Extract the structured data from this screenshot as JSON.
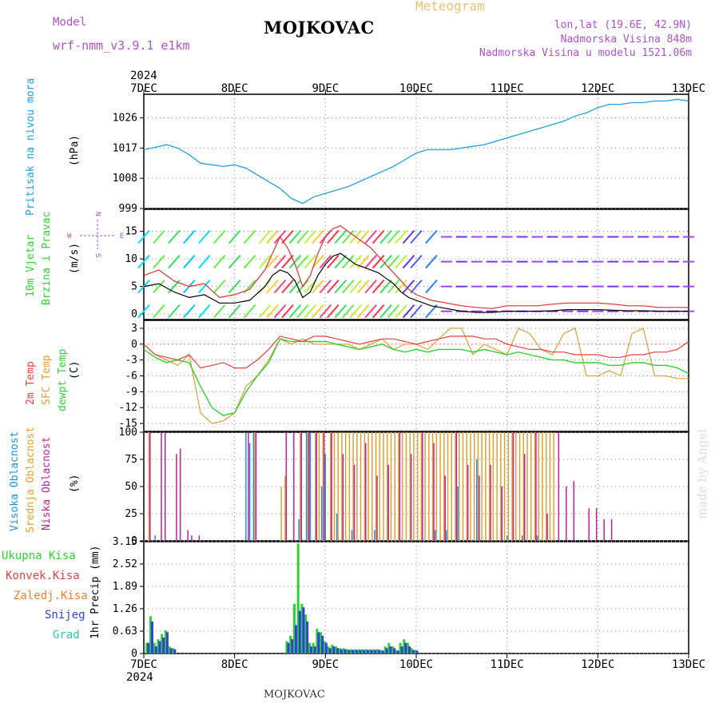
{
  "header": {
    "model_label": "Model",
    "model_name": "wrf-nmm_v3.9.1  e1km",
    "title": "MOJKOVAC",
    "meteogram": "Meteogram",
    "lonlat": "lon,lat (19.6E, 42.9N)",
    "altitude": "Nadmorska Visina 848m",
    "model_altitude": "Nadmorska Visina u modelu 1521.06m"
  },
  "footer": {
    "station": "MOJKOVAC",
    "signature": "made by Angel"
  },
  "colors": {
    "pressure": "#1fa0e0",
    "wind_speed": "#000000",
    "wind_gust": "#e03030",
    "temp_2m": "#e84040",
    "temp_sfc": "#e0a030",
    "dewpoint": "#30d030",
    "cloud_high": "#2090e0",
    "cloud_mid": "#e0a030",
    "cloud_low": "#c020a0",
    "precip_total": "#30d030",
    "precip_snow": "#3040e0",
    "grid": "#888888",
    "purple_text": "#b04fd0"
  },
  "chart_data": [
    {
      "type": "line",
      "panel": "pressure",
      "ylabel_parts": [
        "Pritisak na nivou mora",
        "(hPa)"
      ],
      "ylim": [
        999,
        1033
      ],
      "yticks": [
        999,
        1008,
        1017,
        1026
      ],
      "x_top_labels": [
        "7DEC",
        "8DEC",
        "9DEC",
        "10DEC",
        "11DEC",
        "12DEC",
        "13DEC"
      ],
      "x_top_year": "2024",
      "xlim_hours": [
        0,
        144
      ],
      "grid": true,
      "series": [
        {
          "x": [
            0,
            3,
            6,
            9,
            12,
            15,
            18,
            21,
            24,
            27,
            30,
            33,
            36,
            39,
            42,
            45,
            48,
            51,
            54,
            57,
            60,
            63,
            66,
            69,
            72,
            75,
            78,
            81,
            84,
            87,
            90,
            93,
            96,
            99,
            102,
            105,
            108,
            111,
            114,
            117,
            120,
            123,
            126,
            129,
            132,
            135,
            138,
            141,
            144
          ],
          "values": [
            1016.5,
            1017.2,
            1018.0,
            1017.0,
            1015.0,
            1012.5,
            1012.0,
            1011.5,
            1012.0,
            1011.0,
            1009.0,
            1007.0,
            1005.0,
            1002.0,
            1000.5,
            1002.5,
            1003.5,
            1004.5,
            1005.5,
            1007.0,
            1008.5,
            1010.0,
            1011.5,
            1013.5,
            1015.5,
            1016.5,
            1016.5,
            1016.5,
            1017.0,
            1017.5,
            1018.0,
            1019.0,
            1020.0,
            1021.0,
            1022.0,
            1023.0,
            1024.0,
            1025.0,
            1026.5,
            1027.5,
            1029.0,
            1030.0,
            1030.0,
            1030.5,
            1030.5,
            1031.0,
            1031.0,
            1031.5,
            1031.0
          ]
        }
      ]
    },
    {
      "type": "line",
      "panel": "wind",
      "ylabel_parts": [
        "10m Vjetar",
        "Brzina i Pravac",
        "(m/s)"
      ],
      "compass": [
        "N",
        "E",
        "S",
        "W"
      ],
      "ylim": [
        -1,
        19
      ],
      "yticks": [
        0,
        5,
        10,
        15
      ],
      "grid": true,
      "series": [
        {
          "name": "speed",
          "x": [
            0,
            4,
            8,
            12,
            16,
            20,
            24,
            28,
            32,
            34,
            36,
            38,
            40,
            42,
            44,
            46,
            48,
            50,
            52,
            54,
            56,
            58,
            60,
            62,
            64,
            66,
            68,
            70,
            72,
            76,
            80,
            84,
            88,
            92,
            96,
            100,
            104,
            108,
            112,
            116,
            120,
            124,
            128,
            132,
            136,
            140,
            144
          ],
          "values": [
            5.0,
            5.5,
            4.0,
            3.0,
            3.5,
            2.0,
            2.0,
            2.5,
            5.0,
            7.0,
            8.0,
            7.5,
            6.0,
            3.0,
            4.0,
            7.0,
            9.0,
            10.5,
            11.0,
            10.0,
            9.0,
            8.5,
            8.0,
            7.5,
            6.5,
            5.5,
            4.0,
            3.0,
            2.5,
            1.5,
            1.0,
            0.5,
            0.3,
            0.3,
            0.5,
            0.5,
            0.5,
            0.6,
            0.8,
            0.8,
            0.8,
            0.7,
            0.6,
            0.6,
            0.5,
            0.5,
            0.5
          ]
        },
        {
          "name": "gust",
          "x": [
            0,
            4,
            8,
            12,
            16,
            20,
            24,
            28,
            32,
            34,
            36,
            38,
            40,
            42,
            44,
            46,
            48,
            50,
            52,
            54,
            56,
            58,
            60,
            62,
            64,
            66,
            68,
            70,
            72,
            76,
            80,
            84,
            88,
            92,
            96,
            100,
            104,
            108,
            112,
            116,
            120,
            124,
            128,
            132,
            136,
            140,
            144
          ],
          "values": [
            7.0,
            8.0,
            6.0,
            5.0,
            5.5,
            3.0,
            3.5,
            4.5,
            8.0,
            11.0,
            14.0,
            12.0,
            9.0,
            5.0,
            7.0,
            11.0,
            14.0,
            15.5,
            16.0,
            15.0,
            14.0,
            13.0,
            12.0,
            10.5,
            9.0,
            7.5,
            6.0,
            4.5,
            3.5,
            2.5,
            2.0,
            1.5,
            1.2,
            1.0,
            1.5,
            1.5,
            1.5,
            1.8,
            2.0,
            2.0,
            2.0,
            1.8,
            1.5,
            1.5,
            1.2,
            1.2,
            1.2
          ]
        }
      ]
    },
    {
      "type": "line",
      "panel": "temperature",
      "ylabel_parts": [
        "2m Temp",
        "SFC Temp",
        "dewpt Temp",
        "(C)"
      ],
      "ylim": [
        -16.5,
        4.5
      ],
      "yticks": [
        3,
        0,
        -3,
        -6,
        -9,
        -12,
        -15
      ],
      "grid": true,
      "x": [
        0,
        3,
        6,
        9,
        12,
        15,
        18,
        21,
        24,
        27,
        30,
        33,
        36,
        39,
        42,
        45,
        48,
        51,
        54,
        57,
        60,
        63,
        66,
        69,
        72,
        75,
        78,
        81,
        84,
        87,
        90,
        93,
        96,
        99,
        102,
        105,
        108,
        111,
        114,
        117,
        120,
        123,
        126,
        129,
        132,
        135,
        138,
        141,
        144
      ],
      "series": [
        {
          "name": "2m",
          "values": [
            0,
            -2,
            -2.5,
            -3,
            -2,
            -4.5,
            -4,
            -3.5,
            -4.5,
            -4.5,
            -3,
            -1,
            1.5,
            1,
            0.5,
            1.5,
            1.5,
            1,
            0.5,
            0,
            0.5,
            1,
            1,
            0.5,
            0,
            0.5,
            1,
            1.5,
            1.5,
            1.5,
            1,
            1,
            0,
            -0.5,
            -1,
            -1,
            -1.5,
            -1.5,
            -2,
            -2,
            -2,
            -2.5,
            -2.5,
            -2,
            -2,
            -1.5,
            -1.5,
            -1,
            0.5
          ]
        },
        {
          "name": "sfc",
          "values": [
            0,
            -2,
            -3,
            -4,
            -2,
            -13,
            -15,
            -14.5,
            -13,
            -8,
            -6,
            -3,
            1,
            0,
            1,
            0,
            0,
            0,
            0,
            -1,
            0,
            1,
            -1,
            0,
            0,
            -1,
            1,
            3,
            3,
            -2,
            0,
            -1,
            -2,
            3,
            2,
            -1,
            -2,
            2,
            3,
            -6,
            -6,
            -5,
            -6,
            2,
            3,
            -6,
            -6,
            -6.5,
            -6.5
          ]
        },
        {
          "name": "dewpt",
          "values": [
            -1,
            -2.5,
            -3.5,
            -3,
            -3.5,
            -8,
            -12,
            -13.5,
            -13,
            -9,
            -6,
            -3.5,
            1,
            0.5,
            0.5,
            0.5,
            0.5,
            0,
            -0.5,
            -1,
            -0.5,
            0,
            -1,
            -1.5,
            -1,
            -1.5,
            -1,
            -1,
            -1,
            -1.5,
            -1,
            -1.5,
            -2,
            -1.5,
            -2,
            -2.5,
            -3,
            -3,
            -3.5,
            -3.5,
            -3.5,
            -4,
            -4,
            -3.5,
            -3.5,
            -4,
            -4,
            -4.5,
            -5.5
          ]
        }
      ]
    },
    {
      "type": "bar",
      "panel": "cloud",
      "ylabel_parts": [
        "Visoka Oblacnost",
        "Srednja Oblacnost",
        "Niska Oblacnost",
        "(%)"
      ],
      "ylim": [
        0,
        100
      ],
      "yticks": [
        0,
        25,
        50,
        75,
        100
      ],
      "grid": true,
      "series": [
        {
          "name": "visoka",
          "x": [
            3,
            27,
            28,
            29,
            41,
            43,
            44,
            47,
            48,
            51,
            55,
            61,
            77,
            80,
            83,
            88,
            96,
            100,
            104
          ],
          "values": [
            5,
            100,
            90,
            100,
            20,
            100,
            100,
            50,
            80,
            25,
            10,
            10,
            10,
            10,
            50,
            75,
            5,
            5,
            5
          ]
        },
        {
          "name": "srednja",
          "x": [
            1,
            29,
            36,
            37,
            41,
            43,
            45,
            46,
            47,
            49,
            50,
            51,
            52,
            53,
            54,
            55,
            56,
            57,
            58,
            59,
            60,
            61,
            62,
            63,
            64,
            65,
            66,
            67,
            68,
            69,
            70,
            71,
            72,
            73,
            74,
            75,
            76,
            77,
            78,
            79,
            80,
            81,
            82,
            83,
            84,
            85,
            86,
            87,
            88,
            89,
            90,
            91,
            92,
            93,
            94,
            95,
            96,
            97,
            98,
            99,
            100,
            101,
            102,
            103,
            104,
            105,
            106,
            107,
            108
          ],
          "values": [
            100,
            100,
            50,
            60,
            100,
            100,
            100,
            100,
            100,
            100,
            100,
            100,
            100,
            100,
            100,
            100,
            100,
            100,
            100,
            100,
            100,
            100,
            100,
            100,
            100,
            100,
            100,
            100,
            100,
            100,
            100,
            100,
            100,
            100,
            100,
            100,
            100,
            100,
            100,
            100,
            100,
            100,
            100,
            100,
            100,
            100,
            100,
            100,
            100,
            100,
            100,
            100,
            100,
            100,
            100,
            100,
            100,
            100,
            100,
            100,
            100,
            100,
            100,
            100,
            100,
            100,
            100,
            100,
            100
          ]
        },
        {
          "name": "niska",
          "x": [
            2,
            5,
            6,
            9,
            10,
            12,
            13,
            15,
            28,
            30,
            38,
            40,
            42,
            44,
            46,
            48,
            50,
            53,
            56,
            59,
            62,
            65,
            68,
            71,
            74,
            77,
            80,
            83,
            86,
            89,
            92,
            95,
            98,
            101,
            104,
            107,
            110,
            112,
            114,
            118,
            120,
            122,
            124
          ],
          "values": [
            100,
            100,
            100,
            80,
            85,
            10,
            5,
            5,
            100,
            100,
            100,
            100,
            100,
            100,
            100,
            100,
            100,
            80,
            70,
            90,
            60,
            70,
            100,
            80,
            100,
            90,
            60,
            100,
            70,
            60,
            70,
            50,
            100,
            80,
            100,
            25,
            100,
            50,
            55,
            30,
            30,
            20,
            20
          ]
        }
      ]
    },
    {
      "type": "bar",
      "panel": "precip",
      "ylabel_parts": [
        "1hr Precip (mm)"
      ],
      "legend_left": [
        "Ukupna Kisa",
        "Konvek.Kisa",
        "Zaledj.Kisa",
        "Snijeg",
        "Grad"
      ],
      "ylim": [
        0,
        3.15
      ],
      "yticks": [
        0,
        0.63,
        1.26,
        1.89,
        2.52,
        3.15
      ],
      "x_bottom_labels": [
        "7DEC",
        "8DEC",
        "9DEC",
        "10DEC",
        "11DEC",
        "12DEC",
        "13DEC"
      ],
      "x_bottom_year": "2024",
      "grid": true,
      "series": [
        {
          "name": "ukupna",
          "x": [
            1,
            2,
            3,
            4,
            5,
            6,
            7,
            8,
            38,
            39,
            40,
            41,
            42,
            43,
            44,
            45,
            46,
            47,
            48,
            49,
            50,
            51,
            52,
            53,
            54,
            55,
            56,
            57,
            58,
            59,
            60,
            61,
            62,
            63,
            64,
            65,
            66,
            67,
            68,
            69,
            70,
            71,
            72
          ],
          "values": [
            0.3,
            1.05,
            0.3,
            0.4,
            0.55,
            0.65,
            0.2,
            0.15,
            0.35,
            0.5,
            1.4,
            3.1,
            1.4,
            1.1,
            0.3,
            0.3,
            0.7,
            0.6,
            0.35,
            0.2,
            0.25,
            0.2,
            0.15,
            0.15,
            0.12,
            0.12,
            0.12,
            0.12,
            0.12,
            0.12,
            0.12,
            0.12,
            0.12,
            0.1,
            0.2,
            0.3,
            0.2,
            0.1,
            0.3,
            0.4,
            0.3,
            0.15,
            0.1
          ]
        },
        {
          "name": "snijeg",
          "x": [
            1,
            2,
            3,
            4,
            5,
            6,
            7,
            8,
            38,
            39,
            40,
            41,
            42,
            43,
            44,
            45,
            46,
            47,
            48,
            49,
            50,
            51,
            52,
            53,
            54,
            55,
            56,
            57,
            58,
            59,
            60,
            61,
            62,
            63,
            64,
            65,
            66,
            67,
            68,
            69,
            70,
            71,
            72
          ],
          "values": [
            0.3,
            0.9,
            0.2,
            0.35,
            0.45,
            0.6,
            0.15,
            0.12,
            0.3,
            0.4,
            0.8,
            1.2,
            1.3,
            0.9,
            0.2,
            0.2,
            0.6,
            0.5,
            0.3,
            0.15,
            0.2,
            0.15,
            0.12,
            0.12,
            0.1,
            0.1,
            0.1,
            0.1,
            0.1,
            0.1,
            0.1,
            0.1,
            0.1,
            0.08,
            0.15,
            0.2,
            0.15,
            0.08,
            0.2,
            0.3,
            0.2,
            0.1,
            0.08
          ]
        }
      ]
    }
  ]
}
